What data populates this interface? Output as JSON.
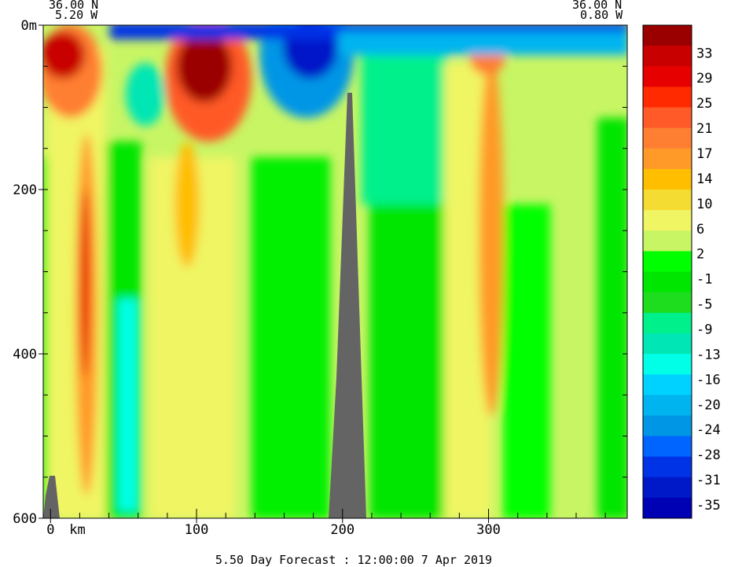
{
  "chart_data": {
    "type": "heatmap",
    "title": "5.50 Day Forecast : 12:00:00    7 Apr 2019",
    "section_start": {
      "lat": "36.00 N",
      "lon": "5.20 W"
    },
    "section_end": {
      "lat": "36.00 N",
      "lon": "0.80 W"
    },
    "x_axis": {
      "unit_label": "km",
      "ticks": [
        0,
        100,
        200,
        300
      ],
      "range": [
        -5,
        395
      ]
    },
    "y_axis": {
      "ticks": [
        "0m",
        "200",
        "400",
        "600"
      ],
      "tick_values": [
        0,
        200,
        400,
        600
      ],
      "range": [
        0,
        600
      ],
      "inverted": true
    },
    "colorbar": {
      "labels": [
        "33",
        "29",
        "25",
        "21",
        "17",
        "14",
        "10",
        "6",
        "2",
        "-1",
        "-5",
        "-9",
        "-13",
        "-16",
        "-20",
        "-24",
        "-28",
        "-31",
        "-35"
      ],
      "colors": [
        "#9b0000",
        "#c80000",
        "#e60000",
        "#ff2a00",
        "#ff5a28",
        "#ff7f32",
        "#ff9a28",
        "#ffbe00",
        "#f5dc32",
        "#f0f564",
        "#c8f564",
        "#00ff00",
        "#00e600",
        "#1edc1e",
        "#00f08c",
        "#00e6b4",
        "#00ffe6",
        "#00d2ff",
        "#00b4f0",
        "#0096e6",
        "#0064ff",
        "#0032e6",
        "#0019c8",
        "#0000b4"
      ]
    },
    "land_color": "#646464",
    "regions": [
      {
        "name": "surface-jet-west",
        "x": 15,
        "z": 60,
        "value": 30
      },
      {
        "name": "jet-core-100km",
        "x": 100,
        "z": 70,
        "value": 33
      },
      {
        "name": "deep-jet-20km",
        "x": 22,
        "z": 350,
        "value": 18
      },
      {
        "name": "westward-surface-150-200km",
        "x": 180,
        "z": 40,
        "value": -35
      },
      {
        "name": "jet-300km",
        "x": 300,
        "z": 200,
        "value": 14
      },
      {
        "name": "seamount-200km",
        "x": 205,
        "z": 80,
        "value": null
      }
    ]
  }
}
